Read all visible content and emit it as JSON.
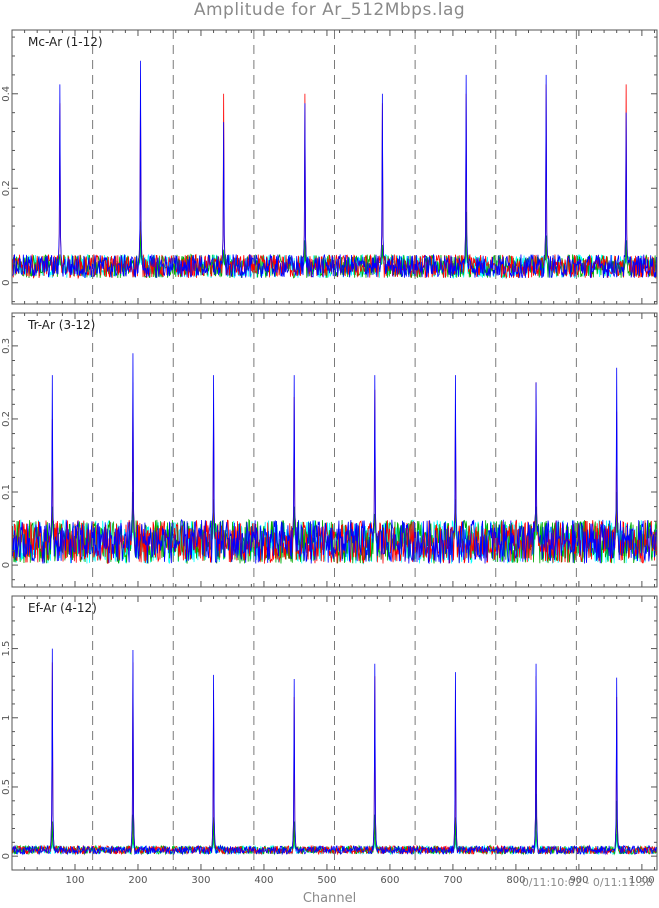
{
  "header": {
    "title": "Amplitude for Ar_512Mbps.lag"
  },
  "footer": {
    "xlabel": "Channel",
    "time_range": "0/11:10:02 - 0/11:11:58"
  },
  "chart_data": [
    {
      "type": "line",
      "title": "Mc-Ar (1-12)",
      "xlim": [
        0,
        1024
      ],
      "ylim": [
        -0.045,
        0.535
      ],
      "xticks": [
        100,
        200,
        300,
        400,
        500,
        600,
        700,
        800,
        900,
        1000
      ],
      "yticks": [
        0,
        0.2,
        0.4
      ],
      "ytick_labels": [
        "0",
        "0.2",
        "0.4"
      ],
      "vlines": [
        128,
        256,
        384,
        512,
        640,
        768,
        896
      ],
      "noise_base": 0.035,
      "noise_amp": 0.025,
      "series": [
        {
          "color": "#0000ff",
          "peaks": [
            [
              76,
              0.42
            ],
            [
              204,
              0.47
            ],
            [
              336,
              0.34
            ],
            [
              465,
              0.38
            ],
            [
              588,
              0.4
            ],
            [
              721,
              0.44
            ],
            [
              848,
              0.44
            ],
            [
              975,
              0.36
            ]
          ]
        },
        {
          "color": "#ff0000",
          "peaks": [
            [
              76,
              0.38
            ],
            [
              204,
              0.42
            ],
            [
              336,
              0.4
            ],
            [
              465,
              0.4
            ],
            [
              588,
              0.38
            ],
            [
              721,
              0.4
            ],
            [
              848,
              0.42
            ],
            [
              975,
              0.42
            ]
          ]
        },
        {
          "color": "#00aa00",
          "peaks": [
            [
              76,
              0.06
            ],
            [
              204,
              0.13
            ],
            [
              336,
              0.07
            ],
            [
              465,
              0.09
            ],
            [
              588,
              0.08
            ],
            [
              721,
              0.15
            ],
            [
              848,
              0.1
            ],
            [
              975,
              0.09
            ]
          ]
        },
        {
          "color": "#00ffff",
          "peaks": [
            [
              76,
              0.05
            ],
            [
              204,
              0.08
            ],
            [
              336,
              0.06
            ],
            [
              465,
              0.07
            ],
            [
              588,
              0.06
            ],
            [
              721,
              0.09
            ],
            [
              848,
              0.07
            ],
            [
              975,
              0.07
            ]
          ]
        }
      ]
    },
    {
      "type": "line",
      "title": "Tr-Ar (3-12)",
      "xlim": [
        0,
        1024
      ],
      "ylim": [
        -0.03,
        0.345
      ],
      "xticks": [
        100,
        200,
        300,
        400,
        500,
        600,
        700,
        800,
        900,
        1000
      ],
      "yticks": [
        0,
        0.1,
        0.2,
        0.3
      ],
      "ytick_labels": [
        "0",
        "0.1",
        "0.2",
        "0.3"
      ],
      "vlines": [
        128,
        256,
        384,
        512,
        640,
        768,
        896
      ],
      "noise_base": 0.032,
      "noise_amp": 0.03,
      "series": [
        {
          "color": "#0000ff",
          "peaks": [
            [
              64,
              0.26
            ],
            [
              192,
              0.29
            ],
            [
              320,
              0.26
            ],
            [
              448,
              0.26
            ],
            [
              576,
              0.26
            ],
            [
              704,
              0.26
            ],
            [
              832,
              0.25
            ],
            [
              960,
              0.27
            ]
          ]
        },
        {
          "color": "#ff0000",
          "peaks": [
            [
              64,
              0.2
            ],
            [
              192,
              0.25
            ],
            [
              320,
              0.22
            ],
            [
              448,
              0.23
            ],
            [
              576,
              0.24
            ],
            [
              704,
              0.22
            ],
            [
              832,
              0.25
            ],
            [
              960,
              0.21
            ]
          ]
        },
        {
          "color": "#00aa00",
          "peaks": [
            [
              64,
              0.08
            ],
            [
              192,
              0.1
            ],
            [
              320,
              0.09
            ],
            [
              448,
              0.08
            ],
            [
              576,
              0.07
            ],
            [
              704,
              0.09
            ],
            [
              832,
              0.08
            ],
            [
              960,
              0.1
            ]
          ]
        },
        {
          "color": "#00ffff",
          "peaks": [
            [
              64,
              0.07
            ],
            [
              192,
              0.09
            ],
            [
              320,
              0.07
            ],
            [
              448,
              0.07
            ],
            [
              576,
              0.06
            ],
            [
              704,
              0.08
            ],
            [
              832,
              0.07
            ],
            [
              960,
              0.08
            ]
          ]
        }
      ]
    },
    {
      "type": "line",
      "title": "Ef-Ar (4-12)",
      "xlim": [
        0,
        1024
      ],
      "ylim": [
        -0.1,
        1.88
      ],
      "xticks": [
        100,
        200,
        300,
        400,
        500,
        600,
        700,
        800,
        900,
        1000
      ],
      "yticks": [
        0,
        0.5,
        1,
        1.5
      ],
      "ytick_labels": [
        "0",
        "0.5",
        "1",
        "1.5"
      ],
      "vlines": [
        128,
        256,
        384,
        512,
        640,
        768,
        896
      ],
      "noise_base": 0.045,
      "noise_amp": 0.03,
      "series": [
        {
          "color": "#0000ff",
          "peaks": [
            [
              64,
              1.5
            ],
            [
              192,
              1.49
            ],
            [
              320,
              1.31
            ],
            [
              448,
              1.28
            ],
            [
              576,
              1.39
            ],
            [
              704,
              1.33
            ],
            [
              832,
              1.39
            ],
            [
              960,
              1.29
            ]
          ]
        },
        {
          "color": "#ff0000",
          "peaks": [
            [
              64,
              1.4
            ],
            [
              192,
              1.4
            ],
            [
              320,
              1.2
            ],
            [
              448,
              1.15
            ],
            [
              576,
              1.3
            ],
            [
              704,
              1.2
            ],
            [
              832,
              1.3
            ],
            [
              960,
              1.15
            ]
          ]
        },
        {
          "color": "#00aa00",
          "peaks": [
            [
              64,
              0.25
            ],
            [
              192,
              0.3
            ],
            [
              320,
              0.28
            ],
            [
              448,
              0.25
            ],
            [
              576,
              0.3
            ],
            [
              704,
              0.28
            ],
            [
              832,
              0.45
            ],
            [
              960,
              0.4
            ]
          ]
        },
        {
          "color": "#00ffff",
          "peaks": [
            [
              64,
              0.12
            ],
            [
              192,
              0.14
            ],
            [
              320,
              0.13
            ],
            [
              448,
              0.12
            ],
            [
              576,
              0.14
            ],
            [
              704,
              0.13
            ],
            [
              832,
              0.18
            ],
            [
              960,
              0.16
            ]
          ]
        }
      ]
    }
  ]
}
